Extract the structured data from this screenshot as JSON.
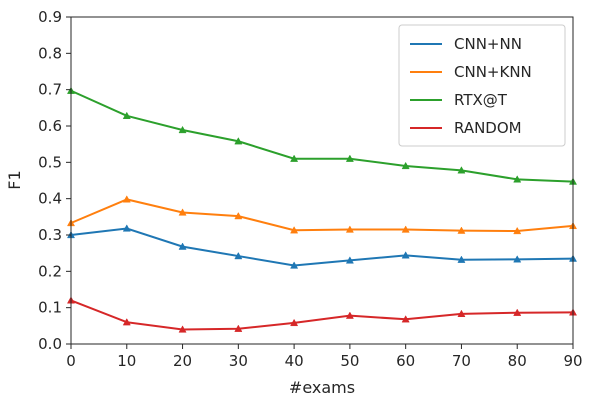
{
  "chart_data": {
    "type": "line",
    "xlabel": "#exams",
    "ylabel": "F1",
    "xlim": [
      0,
      90
    ],
    "ylim": [
      0,
      0.9
    ],
    "x": [
      0,
      10,
      20,
      30,
      40,
      50,
      60,
      70,
      80,
      90
    ],
    "xticks": [
      "0",
      "10",
      "20",
      "30",
      "40",
      "50",
      "60",
      "70",
      "80",
      "90"
    ],
    "yticks": [
      "0.0",
      "0.1",
      "0.2",
      "0.3",
      "0.4",
      "0.5",
      "0.6",
      "0.7",
      "0.8",
      "0.9"
    ],
    "grid": false,
    "legend_position": "top-right",
    "marker": "triangle",
    "series": [
      {
        "name": "CNN+NN",
        "color": "#1f77b4",
        "values": [
          0.3,
          0.318,
          0.268,
          0.242,
          0.216,
          0.23,
          0.244,
          0.232,
          0.233,
          0.235
        ]
      },
      {
        "name": "CNN+KNN",
        "color": "#ff7f0e",
        "values": [
          0.333,
          0.398,
          0.362,
          0.352,
          0.313,
          0.315,
          0.315,
          0.312,
          0.311,
          0.325
        ]
      },
      {
        "name": "RTX@T",
        "color": "#2ca02c",
        "values": [
          0.697,
          0.628,
          0.589,
          0.558,
          0.51,
          0.51,
          0.49,
          0.478,
          0.453,
          0.447
        ]
      },
      {
        "name": "RANDOM",
        "color": "#d62728",
        "values": [
          0.12,
          0.06,
          0.04,
          0.042,
          0.058,
          0.078,
          0.068,
          0.083,
          0.086,
          0.087
        ]
      }
    ]
  }
}
